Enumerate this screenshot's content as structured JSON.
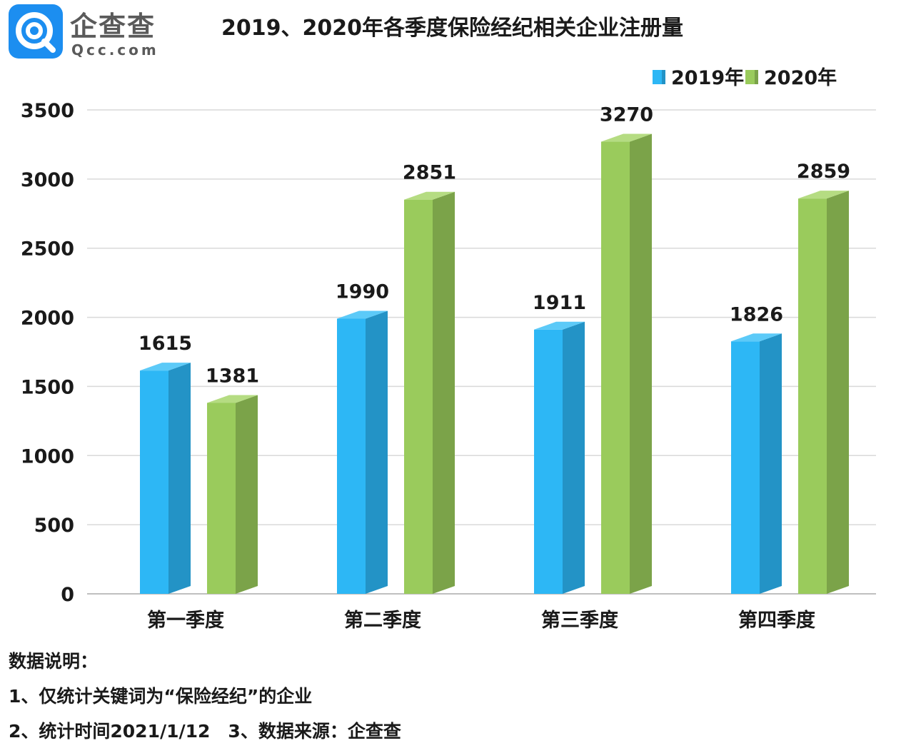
{
  "logo": {
    "cn": "企查查",
    "en": "Qcc.com"
  },
  "title": "2019、2020年各季度保险经纪相关企业注册量",
  "notes": {
    "heading": "数据说明：",
    "line1": "1、仅统计关键词为“保险经纪”的企业",
    "line2": "2、统计时间2021/1/12　3、数据来源：企查查"
  },
  "colors": {
    "s2019": "#2db7f5",
    "s2019_side": "#2393c6",
    "s2019_top": "#5ccaf8",
    "s2020": "#9acb5c",
    "s2020_side": "#7ba349",
    "s2020_top": "#b5dc82",
    "grid": "#d9d9d9"
  },
  "chart_data": {
    "type": "bar",
    "title": "2019、2020年各季度保险经纪相关企业注册量",
    "categories": [
      "第一季度",
      "第二季度",
      "第三季度",
      "第四季度"
    ],
    "series": [
      {
        "name": "2019年",
        "values": [
          1615,
          1990,
          1911,
          1826
        ]
      },
      {
        "name": "2020年",
        "values": [
          1381,
          2851,
          3270,
          2859
        ]
      }
    ],
    "yticks": [
      0,
      500,
      1000,
      1500,
      2000,
      2500,
      3000,
      3500
    ],
    "ylim": [
      0,
      3500
    ],
    "legend_position": "top-right",
    "grid": true
  }
}
